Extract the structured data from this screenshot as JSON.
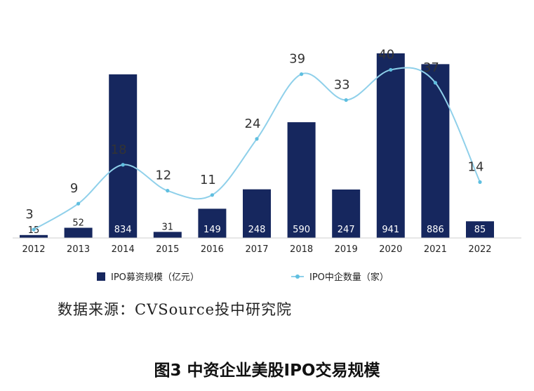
{
  "chart_data": {
    "type": "bar",
    "categories": [
      "2012",
      "2013",
      "2014",
      "2015",
      "2016",
      "2017",
      "2018",
      "2019",
      "2020",
      "2021",
      "2022"
    ],
    "series": [
      {
        "name": "IPO募资规模（亿元）",
        "type": "bar",
        "values": [
          15,
          52,
          834,
          31,
          149,
          248,
          590,
          247,
          941,
          886,
          85
        ],
        "color": "#16275e"
      },
      {
        "name": "IPO中企数量（家）",
        "type": "line",
        "values": [
          3,
          9,
          18,
          12,
          11,
          24,
          39,
          33,
          40,
          37,
          14
        ],
        "color": "#8fd0ea"
      }
    ],
    "legend_position": "bottom",
    "grid": false
  },
  "legend": {
    "bar_label": "IPO募资规模（亿元）",
    "line_label": "IPO中企数量（家）"
  },
  "source_text": "数据来源：CVSource投中研究院",
  "caption": "图3   中资企业美股IPO交易规模"
}
